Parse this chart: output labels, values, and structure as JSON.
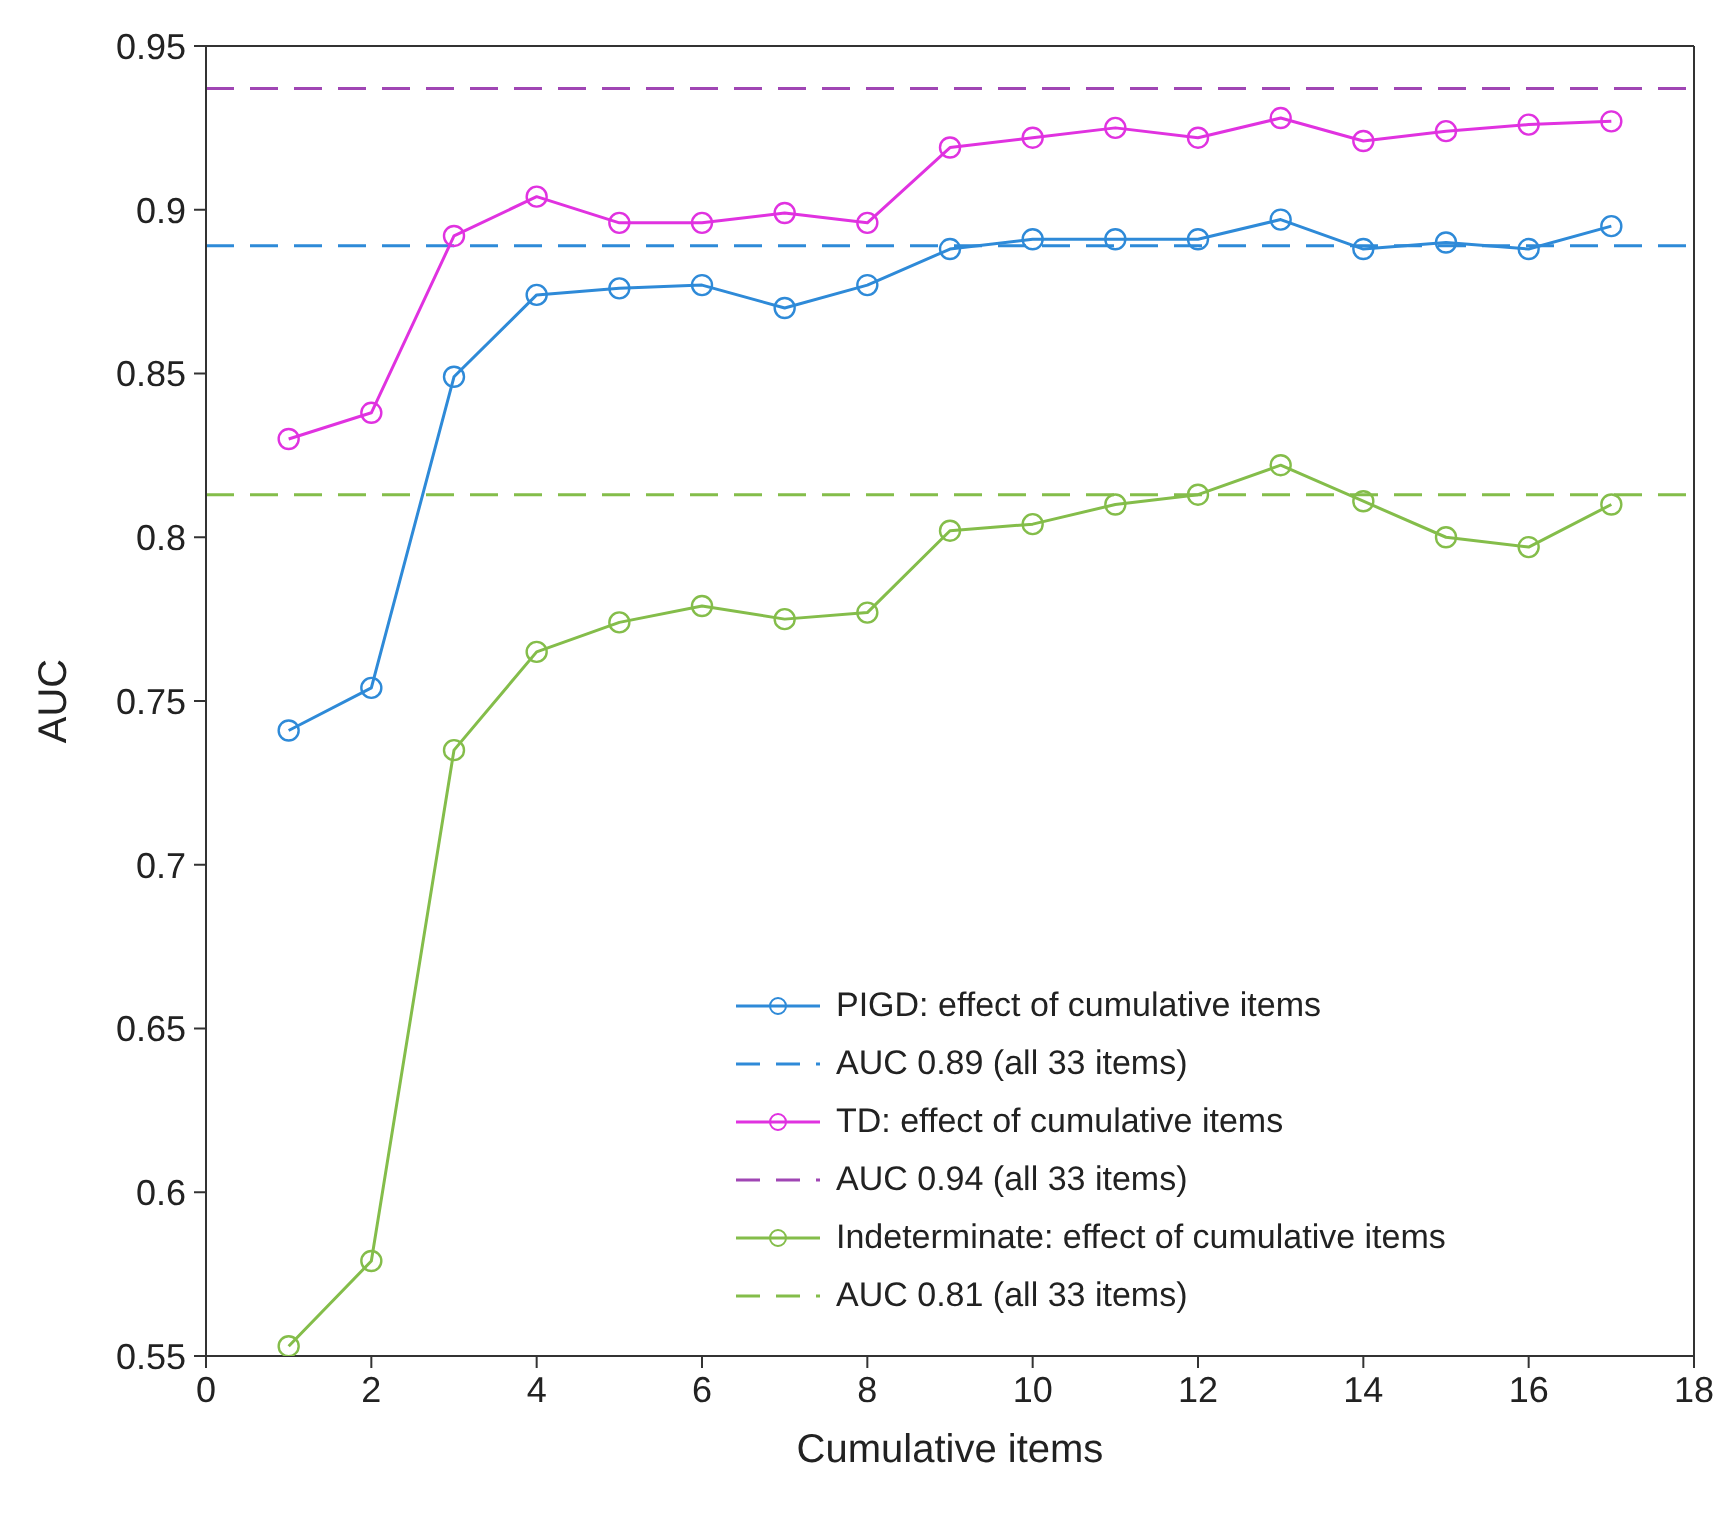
{
  "chart_data": {
    "type": "line",
    "xlabel": "Cumulative items",
    "ylabel": "AUC",
    "x": [
      1,
      2,
      3,
      4,
      5,
      6,
      7,
      8,
      9,
      10,
      11,
      12,
      13,
      14,
      15,
      16,
      17
    ],
    "series": [
      {
        "name": "PIGD: effect of cumulative items",
        "color": "#2e8ad8",
        "values": [
          0.741,
          0.754,
          0.849,
          0.874,
          0.876,
          0.877,
          0.87,
          0.877,
          0.888,
          0.891,
          0.891,
          0.891,
          0.897,
          0.888,
          0.89,
          0.888,
          0.895
        ]
      },
      {
        "name": "TD: effect of cumulative items",
        "color": "#e032e0",
        "values": [
          0.83,
          0.838,
          0.892,
          0.904,
          0.896,
          0.896,
          0.899,
          0.896,
          0.919,
          0.922,
          0.925,
          0.922,
          0.928,
          0.921,
          0.924,
          0.926,
          0.927
        ]
      },
      {
        "name": "Indeterminate: effect of cumulative items",
        "color": "#84bd4a",
        "values": [
          0.553,
          0.579,
          0.735,
          0.765,
          0.774,
          0.779,
          0.775,
          0.777,
          0.802,
          0.804,
          0.81,
          0.813,
          0.822,
          0.811,
          0.8,
          0.797,
          0.81
        ]
      }
    ],
    "ref_lines": [
      {
        "axis": "y",
        "value": 0.889,
        "label": "AUC 0.89 (all 33 items)",
        "color": "#2e8ad8",
        "line_style": "dashed"
      },
      {
        "axis": "y",
        "value": 0.937,
        "label": "AUC 0.94 (all 33 items)",
        "color": "#a046b4",
        "line_style": "dashed"
      },
      {
        "axis": "y",
        "value": 0.813,
        "label": "AUC 0.81 (all 33 items)",
        "color": "#84bd4a",
        "line_style": "dashed"
      }
    ],
    "xlim": [
      0,
      18
    ],
    "xticks": [
      0,
      2,
      4,
      6,
      8,
      10,
      12,
      14,
      16,
      18
    ],
    "ylim": [
      0.55,
      0.95
    ],
    "yticks": [
      0.55,
      0.6,
      0.65,
      0.7,
      0.75,
      0.8,
      0.85,
      0.9,
      0.95
    ],
    "marker": "circle",
    "line_style": "solid",
    "grid": false,
    "legend": "bottom right"
  }
}
